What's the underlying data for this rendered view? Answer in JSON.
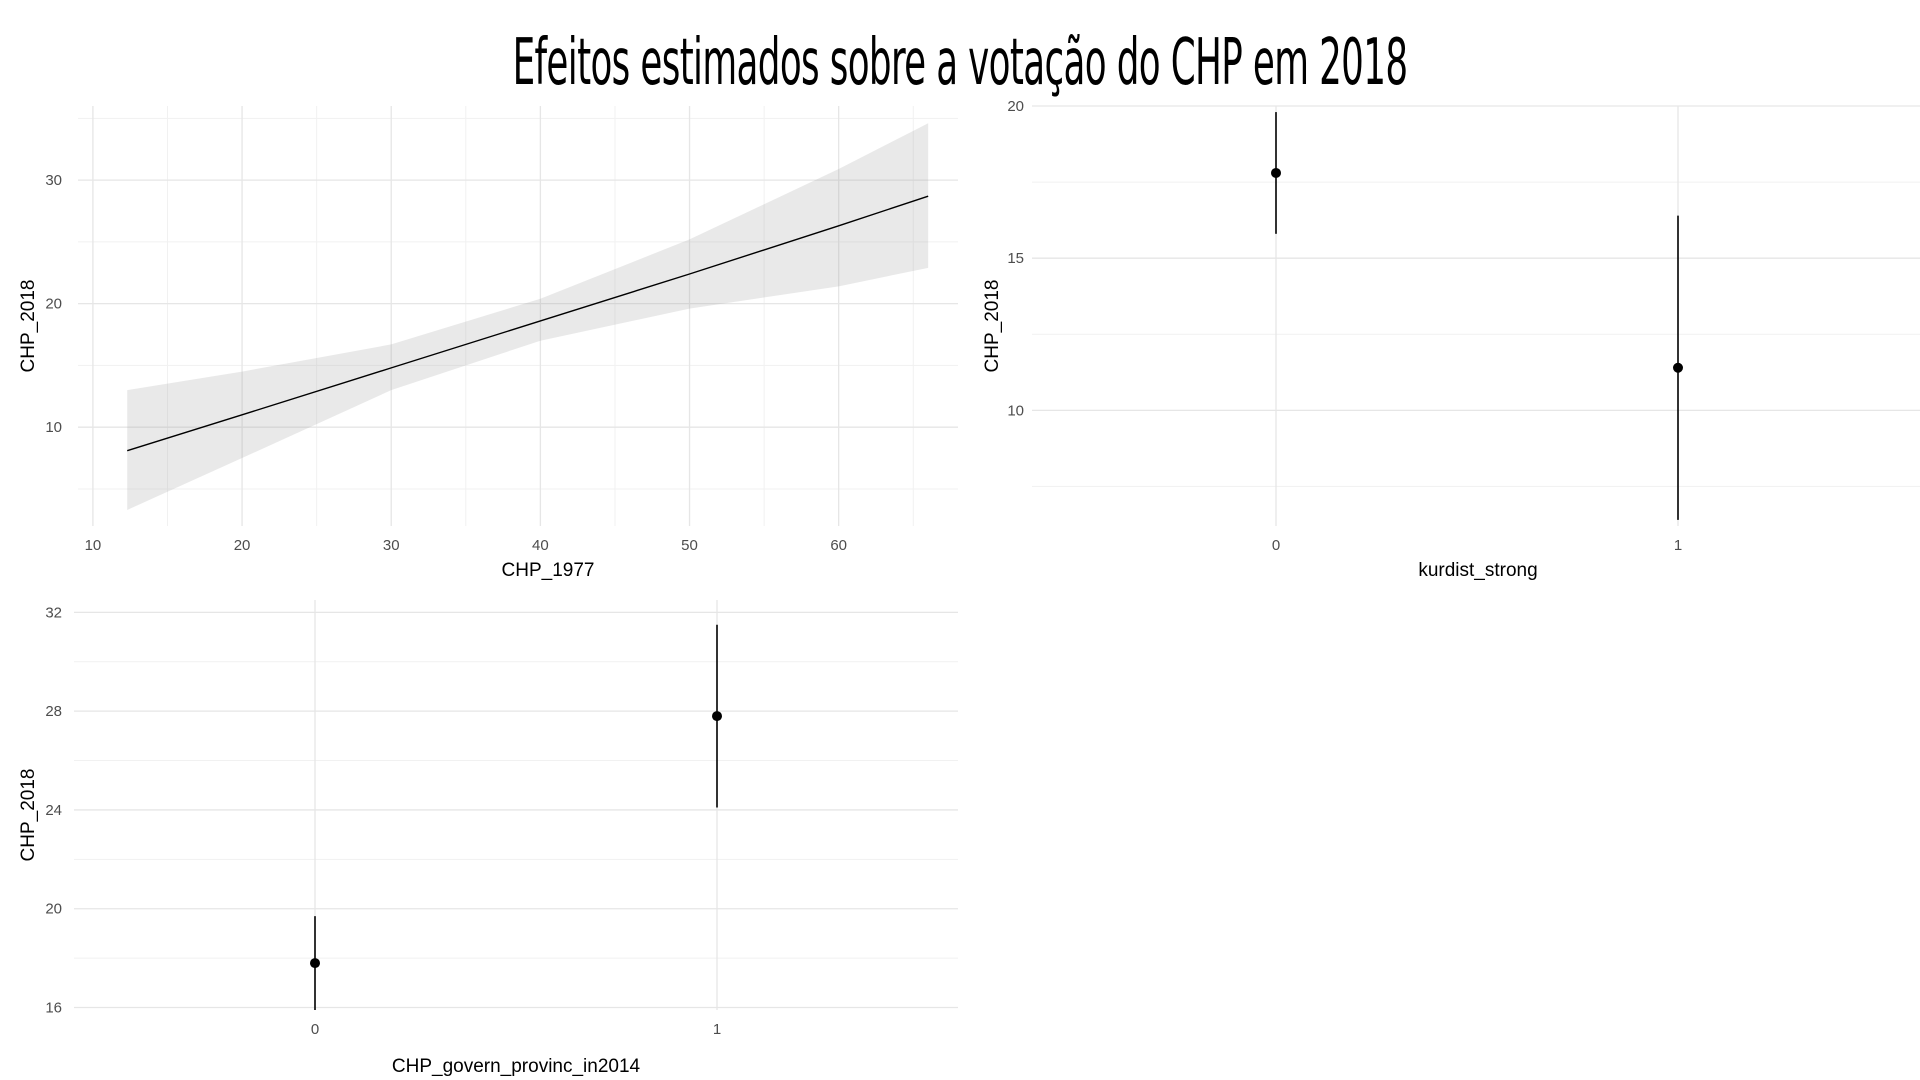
{
  "title": "Efeitos estimados sobre a votação do CHP em 2018",
  "chart_data": [
    {
      "type": "line",
      "xlabel": "CHP_1977",
      "ylabel": "CHP_2018",
      "xlim": [
        9,
        68
      ],
      "ylim": [
        2,
        36
      ],
      "xticks": [
        10,
        20,
        30,
        40,
        50,
        60
      ],
      "yticks": [
        10,
        20,
        30
      ],
      "grid": true,
      "series": [
        {
          "x": [
            12.3,
            20,
            30,
            40,
            50,
            60,
            66
          ],
          "y": [
            8.1,
            11.0,
            14.8,
            18.6,
            22.4,
            26.3,
            28.7
          ],
          "lower": [
            3.3,
            7.5,
            13.0,
            17.0,
            19.6,
            21.4,
            22.9
          ],
          "upper": [
            13.0,
            14.5,
            16.7,
            20.4,
            25.2,
            30.9,
            34.6
          ]
        }
      ]
    },
    {
      "type": "scatter",
      "xlabel": "kurdist_strong",
      "ylabel": "CHP_2018",
      "categories": [
        "0",
        "1"
      ],
      "ylim": [
        6.2,
        20
      ],
      "yticks": [
        10,
        15,
        20
      ],
      "grid": true,
      "values": [
        17.8,
        11.4
      ],
      "lower": [
        15.8,
        6.4
      ],
      "upper": [
        19.8,
        16.4
      ]
    },
    {
      "type": "scatter",
      "xlabel": "CHP_govern_provinc_in2014",
      "ylabel": "CHP_2018",
      "categories": [
        "0",
        "1"
      ],
      "ylim": [
        15.9,
        32.5
      ],
      "yticks": [
        16,
        20,
        24,
        28,
        32
      ],
      "grid": true,
      "values": [
        17.8,
        27.8
      ],
      "lower": [
        15.9,
        24.1
      ],
      "upper": [
        19.7,
        31.5
      ]
    }
  ]
}
